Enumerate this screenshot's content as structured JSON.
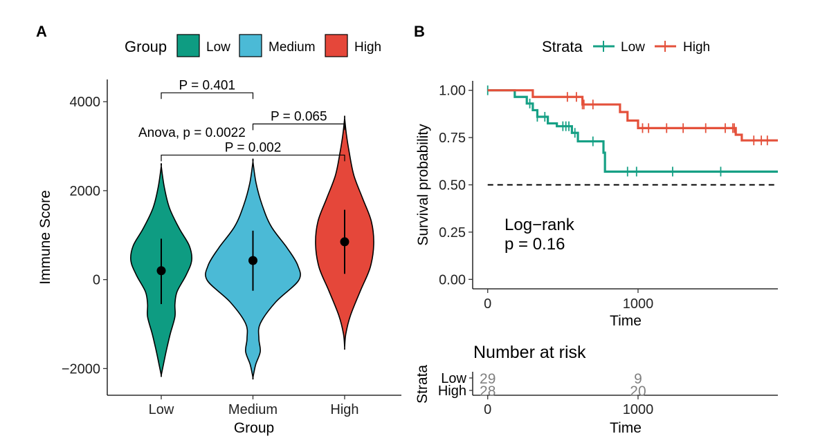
{
  "panel_a": {
    "tag": "A",
    "legend": {
      "title": "Group",
      "items": [
        "Low",
        "Medium",
        "High"
      ]
    },
    "anova_label": "Anova, p = 0.0022",
    "comparisons": [
      {
        "groups": [
          "Low",
          "Medium"
        ],
        "label": "P = 0.401",
        "y": 4200
      },
      {
        "groups": [
          "Medium",
          "High"
        ],
        "label": "P = 0.065",
        "y": 3500
      },
      {
        "groups": [
          "Low",
          "High"
        ],
        "label": "P = 0.002",
        "y": 2800
      }
    ]
  },
  "panel_b": {
    "tag": "B",
    "legend": {
      "title": "Strata",
      "items": [
        "Low",
        "High"
      ]
    },
    "logrank_line1": "Log−rank",
    "logrank_line2": "p = 0.16",
    "risk_table": {
      "title": "Number at risk",
      "ylabel": "Strata",
      "xlabel": "Time",
      "rows": [
        {
          "name": "Low",
          "color": "#16A085",
          "times": [
            0,
            1000
          ],
          "counts": [
            "29",
            "9"
          ]
        },
        {
          "name": "High",
          "color": "#E4513B",
          "times": [
            0,
            1000
          ],
          "counts": [
            "28",
            "20"
          ]
        }
      ],
      "x_ticks": [
        "0",
        "1000"
      ]
    }
  },
  "chart_data": [
    {
      "type": "violin",
      "xlabel": "Group",
      "ylabel": "Immune Score",
      "categories": [
        "Low",
        "Medium",
        "High"
      ],
      "colors": [
        "#0E9C82",
        "#4BBAD6",
        "#E5473A"
      ],
      "ylim": [
        -2600,
        4500
      ],
      "y_ticks": [
        -2000,
        0,
        2000,
        4000
      ],
      "y_tick_labels": [
        "−2000",
        "0",
        "2000",
        "4000"
      ],
      "summary": [
        {
          "group": "Low",
          "mean": 200,
          "lower": -550,
          "upper": 920,
          "min": -2150,
          "max": 2550
        },
        {
          "group": "Medium",
          "mean": 430,
          "lower": -250,
          "upper": 1100,
          "min": -2200,
          "max": 2650
        },
        {
          "group": "High",
          "mean": 850,
          "lower": 130,
          "upper": 1570,
          "min": -1530,
          "max": 3630
        }
      ],
      "grid": false
    },
    {
      "type": "line",
      "subtype": "kaplan-meier",
      "xlabel": "Time",
      "ylabel": "Survival probability",
      "xlim": [
        -100,
        1930
      ],
      "ylim": [
        -0.05,
        1.05
      ],
      "x_ticks": [
        0,
        1000
      ],
      "x_tick_labels": [
        "0",
        "1000"
      ],
      "y_ticks": [
        0,
        0.25,
        0.5,
        0.75,
        1
      ],
      "y_tick_labels": [
        "0.00",
        "0.25",
        "0.50",
        "0.75",
        "1.00"
      ],
      "reference_line": 0.5,
      "grid": false,
      "series": [
        {
          "name": "Low",
          "color": "#16A085",
          "steps": [
            [
              0,
              1.0
            ],
            [
              180,
              0.965
            ],
            [
              260,
              0.93
            ],
            [
              300,
              0.895
            ],
            [
              330,
              0.86
            ],
            [
              400,
              0.825
            ],
            [
              460,
              0.81
            ],
            [
              560,
              0.775
            ],
            [
              600,
              0.73
            ],
            [
              770,
              0.67
            ],
            [
              780,
              0.57
            ],
            [
              1930,
              0.57
            ]
          ],
          "censor_times": [
            0,
            280,
            330,
            380,
            500,
            520,
            540,
            580,
            700,
            930,
            990,
            1230,
            1550
          ]
        },
        {
          "name": "High",
          "color": "#E4513B",
          "steps": [
            [
              0,
              1.0
            ],
            [
              300,
              0.965
            ],
            [
              630,
              0.925
            ],
            [
              880,
              0.885
            ],
            [
              930,
              0.84
            ],
            [
              1000,
              0.8
            ],
            [
              1650,
              0.765
            ],
            [
              1690,
              0.735
            ],
            [
              1930,
              0.735
            ]
          ],
          "censor_times": [
            530,
            590,
            630,
            640,
            700,
            1030,
            1070,
            1190,
            1300,
            1450,
            1580,
            1630,
            1640,
            1770,
            1820,
            1860
          ]
        }
      ]
    }
  ]
}
